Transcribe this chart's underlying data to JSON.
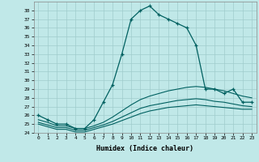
{
  "xlabel": "Humidex (Indice chaleur)",
  "background_color": "#c0e8e8",
  "grid_color": "#a0cccc",
  "line_color": "#006060",
  "xlim": [
    -0.5,
    23.5
  ],
  "ylim": [
    24,
    39
  ],
  "yticks": [
    24,
    25,
    26,
    27,
    28,
    29,
    30,
    31,
    32,
    33,
    34,
    35,
    36,
    37,
    38
  ],
  "xticks": [
    0,
    1,
    2,
    3,
    4,
    5,
    6,
    7,
    8,
    9,
    10,
    11,
    12,
    13,
    14,
    15,
    16,
    17,
    18,
    19,
    20,
    21,
    22,
    23
  ],
  "series": [
    {
      "x": [
        0,
        1,
        2,
        3,
        4,
        5,
        6,
        7,
        8,
        9,
        10,
        11,
        12,
        13,
        14,
        15,
        16,
        17,
        18,
        19,
        20,
        21,
        22,
        23
      ],
      "y": [
        26,
        25.5,
        25,
        25,
        24.5,
        24.5,
        25.5,
        27.5,
        29.5,
        33,
        37,
        38,
        38.5,
        37.5,
        37,
        36.5,
        36,
        34,
        29,
        29,
        28.5,
        29,
        27.5,
        27.5
      ],
      "marker": "+"
    },
    {
      "x": [
        0,
        1,
        2,
        3,
        4,
        5,
        6,
        7,
        8,
        9,
        10,
        11,
        12,
        13,
        14,
        15,
        16,
        17,
        18,
        19,
        20,
        21,
        22,
        23
      ],
      "y": [
        25.5,
        25.2,
        24.8,
        24.8,
        24.5,
        24.5,
        24.8,
        25.2,
        25.8,
        26.5,
        27.2,
        27.8,
        28.2,
        28.5,
        28.8,
        29.0,
        29.2,
        29.3,
        29.2,
        29.0,
        28.8,
        28.5,
        28.2,
        28.0
      ],
      "marker": null
    },
    {
      "x": [
        0,
        1,
        2,
        3,
        4,
        5,
        6,
        7,
        8,
        9,
        10,
        11,
        12,
        13,
        14,
        15,
        16,
        17,
        18,
        19,
        20,
        21,
        22,
        23
      ],
      "y": [
        25.2,
        24.9,
        24.6,
        24.6,
        24.3,
        24.3,
        24.6,
        24.9,
        25.3,
        25.8,
        26.3,
        26.8,
        27.1,
        27.3,
        27.5,
        27.7,
        27.8,
        27.9,
        27.8,
        27.6,
        27.5,
        27.3,
        27.1,
        27.0
      ],
      "marker": null
    },
    {
      "x": [
        0,
        1,
        2,
        3,
        4,
        5,
        6,
        7,
        8,
        9,
        10,
        11,
        12,
        13,
        14,
        15,
        16,
        17,
        18,
        19,
        20,
        21,
        22,
        23
      ],
      "y": [
        25.0,
        24.7,
        24.4,
        24.4,
        24.1,
        24.1,
        24.4,
        24.7,
        25.0,
        25.4,
        25.8,
        26.2,
        26.5,
        26.7,
        26.9,
        27.0,
        27.1,
        27.2,
        27.1,
        27.0,
        26.9,
        26.8,
        26.7,
        26.7
      ],
      "marker": null
    }
  ]
}
